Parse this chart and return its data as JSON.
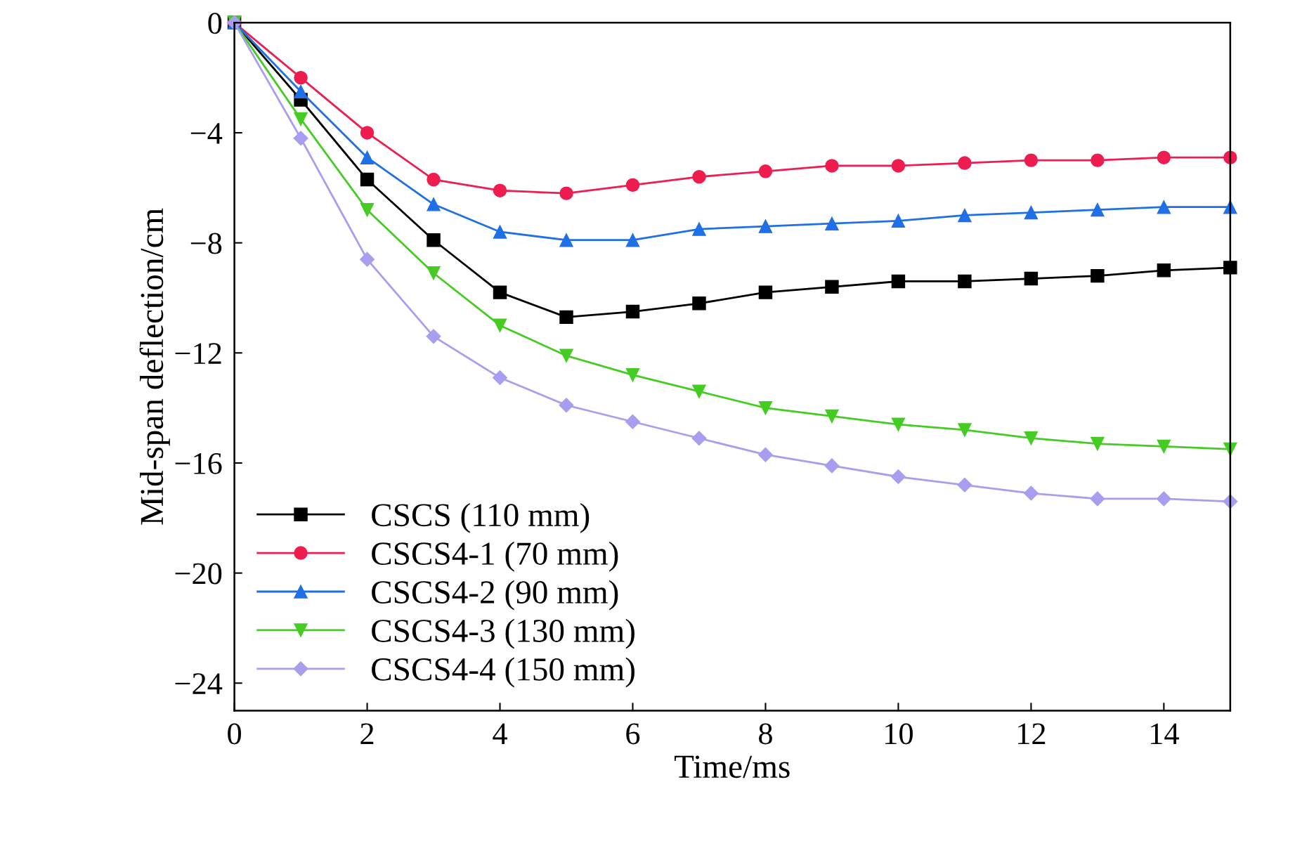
{
  "chart_data": {
    "type": "line",
    "xlabel": "Time/ms",
    "ylabel": "Mid-span deflection/cm",
    "x": [
      0,
      1,
      2,
      3,
      4,
      5,
      6,
      7,
      8,
      9,
      10,
      11,
      12,
      13,
      14,
      15
    ],
    "series": [
      {
        "name": "CSCS (110 mm)",
        "color": "#000000",
        "marker": "square",
        "values": [
          0,
          -2.8,
          -5.7,
          -7.9,
          -9.8,
          -10.7,
          -10.5,
          -10.2,
          -9.8,
          -9.6,
          -9.4,
          -9.4,
          -9.3,
          -9.2,
          -9.0,
          -8.9
        ]
      },
      {
        "name": "CSCS4-1 (70 mm)",
        "color": "#ee1c4f",
        "marker": "circle",
        "values": [
          0,
          -2.0,
          -4.0,
          -5.7,
          -6.1,
          -6.2,
          -5.9,
          -5.6,
          -5.4,
          -5.2,
          -5.2,
          -5.1,
          -5.0,
          -5.0,
          -4.9,
          -4.9
        ]
      },
      {
        "name": "CSCS4-2 (90 mm)",
        "color": "#1f6fe6",
        "marker": "triangle",
        "values": [
          0,
          -2.5,
          -4.9,
          -6.6,
          -7.6,
          -7.9,
          -7.9,
          -7.5,
          -7.4,
          -7.3,
          -7.2,
          -7.0,
          -6.9,
          -6.8,
          -6.7,
          -6.7
        ]
      },
      {
        "name": "CSCS4-3 (130 mm)",
        "color": "#44cc22",
        "marker": "triangle_down",
        "values": [
          0,
          -3.5,
          -6.8,
          -9.1,
          -11.0,
          -12.1,
          -12.8,
          -13.4,
          -14.0,
          -14.3,
          -14.6,
          -14.8,
          -15.1,
          -15.3,
          -15.4,
          -15.5
        ]
      },
      {
        "name": "CSCS4-4 (150 mm)",
        "color": "#a89ef0",
        "marker": "diamond",
        "values": [
          0,
          -4.2,
          -8.6,
          -11.4,
          -12.9,
          -13.9,
          -14.5,
          -15.1,
          -15.7,
          -16.1,
          -16.5,
          -16.8,
          -17.1,
          -17.3,
          -17.3,
          -17.4
        ]
      }
    ],
    "xlim": [
      0,
      15
    ],
    "xticks": [
      0,
      2,
      4,
      6,
      8,
      10,
      12,
      14
    ],
    "ylim": [
      -25,
      0
    ],
    "yticks": [
      0,
      {
        "value": -4,
        "label": "−4"
      },
      {
        "value": -8,
        "label": "−8"
      },
      {
        "value": -12,
        "label": "−12"
      },
      {
        "value": -16,
        "label": "−16"
      },
      {
        "value": -20,
        "label": "−20"
      },
      {
        "value": -24,
        "label": "−24"
      }
    ],
    "grid": false,
    "legend": "bottom left",
    "line_style": "solid"
  }
}
